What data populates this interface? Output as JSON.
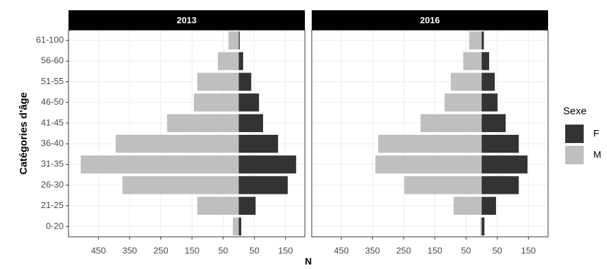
{
  "chart_data": [
    {
      "type": "bar",
      "title": "2013",
      "categories": [
        "61-100",
        "56-60",
        "51-55",
        "46-50",
        "41-45",
        "36-40",
        "31-35",
        "26-30",
        "21-25",
        "0-20"
      ],
      "series": [
        {
          "name": "F",
          "color": "#333333",
          "values": [
            3,
            14,
            40,
            65,
            78,
            126,
            184,
            157,
            54,
            8
          ]
        },
        {
          "name": "M",
          "color": "#bfbfbf",
          "values": [
            -33,
            -67,
            -133,
            -144,
            -230,
            -395,
            -507,
            -373,
            -133,
            -19
          ]
        }
      ],
      "xlim": [
        -546,
        212
      ],
      "xticks": [
        {
          "value": -450,
          "label": "450"
        },
        {
          "value": -350,
          "label": "350"
        },
        {
          "value": -250,
          "label": "250"
        },
        {
          "value": -150,
          "label": "150"
        },
        {
          "value": -50,
          "label": "50"
        },
        50,
        150
      ],
      "grid": true
    },
    {
      "type": "bar",
      "title": "2016",
      "categories": [
        "61-100",
        "56-60",
        "51-55",
        "46-50",
        "41-45",
        "36-40",
        "31-35",
        "26-30",
        "21-25",
        "0-20"
      ],
      "series": [
        {
          "name": "F",
          "color": "#333333",
          "values": [
            7,
            24,
            42,
            51,
            77,
            119,
            147,
            119,
            46,
            9
          ]
        },
        {
          "name": "M",
          "color": "#bfbfbf",
          "values": [
            -40,
            -59,
            -99,
            -119,
            -196,
            -332,
            -341,
            -248,
            -90,
            -4
          ]
        }
      ],
      "xlim": [
        -545,
        213
      ],
      "xticks": [
        {
          "value": -450,
          "label": "450"
        },
        {
          "value": -350,
          "label": "350"
        },
        {
          "value": -250,
          "label": "250"
        },
        {
          "value": -150,
          "label": "150"
        },
        {
          "value": -50,
          "label": "50"
        },
        50,
        150
      ],
      "grid": true
    }
  ],
  "x_label": "N",
  "y_label": "Catégories d'âge",
  "legend_title": "Sexe"
}
